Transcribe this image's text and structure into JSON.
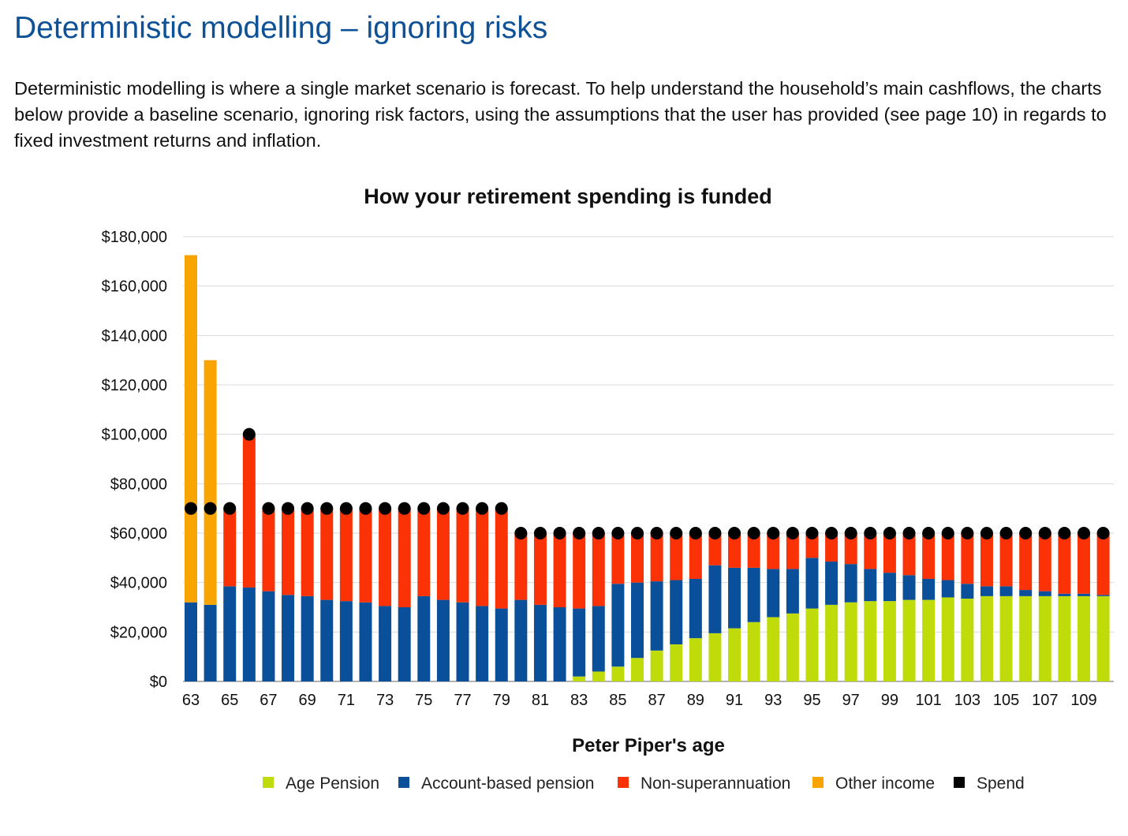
{
  "page": {
    "title": "Deterministic modelling – ignoring risks",
    "intro": "Deterministic modelling is where a single market scenario is forecast. To help understand the household’s main cashflows, the charts below provide a baseline scenario, ignoring risk factors, using the assumptions that the user has provided (see page 10) in regards to fixed investment returns and inflation."
  },
  "chart_data": {
    "type": "bar",
    "stacked": true,
    "title": "How your retirement spending is funded",
    "xlabel": "Peter Piper's age",
    "ylabel": "",
    "ylim": [
      0,
      180000
    ],
    "yticks": [
      0,
      20000,
      40000,
      60000,
      80000,
      100000,
      120000,
      140000,
      160000,
      180000
    ],
    "ytick_labels": [
      "$0",
      "$20,000",
      "$40,000",
      "$60,000",
      "$80,000",
      "$100,000",
      "$120,000",
      "$140,000",
      "$160,000",
      "$180,000"
    ],
    "grid": true,
    "legend_position": "bottom",
    "categories": [
      63,
      64,
      65,
      66,
      67,
      68,
      69,
      70,
      71,
      72,
      73,
      74,
      75,
      76,
      77,
      78,
      79,
      80,
      81,
      82,
      83,
      84,
      85,
      86,
      87,
      88,
      89,
      90,
      91,
      92,
      93,
      94,
      95,
      96,
      97,
      98,
      99,
      100,
      101,
      102,
      103,
      104,
      105,
      106,
      107,
      108,
      109,
      110
    ],
    "xtick_labels": [
      "63",
      "65",
      "67",
      "69",
      "71",
      "73",
      "75",
      "77",
      "79",
      "81",
      "83",
      "85",
      "87",
      "89",
      "91",
      "93",
      "95",
      "97",
      "99",
      "101",
      "103",
      "105",
      "107",
      "109"
    ],
    "series": [
      {
        "name": "Age Pension",
        "color": "#bfdc0a",
        "values": [
          0,
          0,
          0,
          0,
          0,
          0,
          0,
          0,
          0,
          0,
          0,
          0,
          0,
          0,
          0,
          0,
          0,
          0,
          0,
          0,
          2000,
          4000,
          6000,
          9500,
          12500,
          15000,
          17500,
          19500,
          21500,
          24000,
          26000,
          27500,
          29500,
          31000,
          32000,
          32500,
          32500,
          33000,
          33000,
          34000,
          33500,
          34500,
          34500,
          34500,
          34500,
          34500,
          34500,
          34500
        ]
      },
      {
        "name": "Account-based pension",
        "color": "#0a4f9a",
        "values": [
          32000,
          31000,
          38500,
          38000,
          36500,
          35000,
          34500,
          33000,
          32500,
          32000,
          30500,
          30000,
          34500,
          33000,
          32000,
          30500,
          29500,
          33000,
          31000,
          30000,
          27500,
          26500,
          33500,
          30500,
          28000,
          26000,
          24000,
          27500,
          24500,
          22000,
          19500,
          18000,
          20500,
          17500,
          15500,
          13000,
          11500,
          10000,
          8500,
          7000,
          6000,
          4000,
          4000,
          2500,
          2000,
          1000,
          1000,
          500
        ]
      },
      {
        "name": "Non-superannuation",
        "color": "#fa3205",
        "values": [
          0,
          0,
          31500,
          62000,
          33500,
          35000,
          35500,
          37000,
          37500,
          38000,
          39500,
          40000,
          35500,
          37000,
          38000,
          39500,
          40500,
          27000,
          29000,
          30000,
          30500,
          29500,
          20500,
          20000,
          19500,
          19000,
          18500,
          13000,
          14000,
          14000,
          14500,
          14500,
          10000,
          11500,
          12500,
          14500,
          16000,
          17000,
          18500,
          19000,
          20500,
          21500,
          21500,
          23000,
          23500,
          24500,
          24500,
          25000
        ]
      },
      {
        "name": "Other income",
        "color": "#f9a400",
        "values": [
          140500,
          99000,
          0,
          0,
          0,
          0,
          0,
          0,
          0,
          0,
          0,
          0,
          0,
          0,
          0,
          0,
          0,
          0,
          0,
          0,
          0,
          0,
          0,
          0,
          0,
          0,
          0,
          0,
          0,
          0,
          0,
          0,
          0,
          0,
          0,
          0,
          0,
          0,
          0,
          0,
          0,
          0,
          0,
          0,
          0,
          0,
          0,
          0
        ]
      }
    ],
    "spend": {
      "name": "Spend",
      "color": "#000000",
      "values": [
        70000,
        70000,
        70000,
        100000,
        70000,
        70000,
        70000,
        70000,
        70000,
        70000,
        70000,
        70000,
        70000,
        70000,
        70000,
        70000,
        70000,
        60000,
        60000,
        60000,
        60000,
        60000,
        60000,
        60000,
        60000,
        60000,
        60000,
        60000,
        60000,
        60000,
        60000,
        60000,
        60000,
        60000,
        60000,
        60000,
        60000,
        60000,
        60000,
        60000,
        60000,
        60000,
        60000,
        60000,
        60000,
        60000,
        60000,
        60000
      ]
    }
  }
}
